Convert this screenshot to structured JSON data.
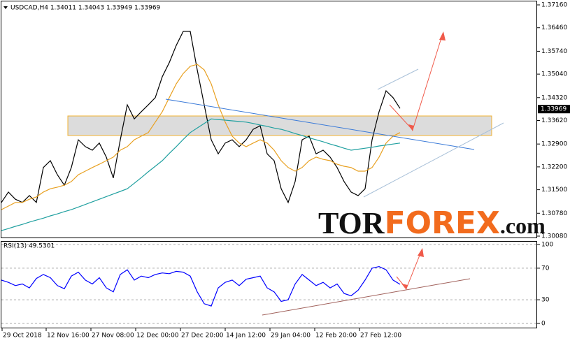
{
  "chart_data": [
    {
      "type": "line",
      "title": "USDCAD,H4  1.34011 1.34043 1.33949 1.33969",
      "x": [
        0,
        1,
        2,
        3,
        4,
        5,
        6,
        7,
        8,
        9,
        10,
        11,
        12,
        13,
        14,
        15,
        16,
        17,
        18,
        19,
        20,
        21,
        22,
        23,
        24,
        25,
        26,
        27,
        28,
        29,
        30,
        31,
        32,
        33,
        34,
        35,
        36,
        37,
        38,
        39,
        40,
        41,
        42,
        43,
        44,
        45,
        46,
        47,
        48,
        49,
        50,
        51,
        52,
        53,
        54,
        55,
        56,
        57
      ],
      "xlim": [
        0,
        76.6
      ],
      "ylim": [
        1.3008,
        1.3716
      ],
      "yticks": [
        {
          "value": 1.3716,
          "label": "1.37160"
        },
        {
          "value": 1.3646,
          "label": "1.36460"
        },
        {
          "value": 1.3574,
          "label": "1.35740"
        },
        {
          "value": 1.3504,
          "label": "1.35040"
        },
        {
          "value": 1.3432,
          "label": "1.34320"
        },
        {
          "value": 1.3362,
          "label": "1.33620"
        },
        {
          "value": 1.329,
          "label": "1.32900"
        },
        {
          "value": 1.322,
          "label": "1.32200"
        },
        {
          "value": 1.315,
          "label": "1.31500"
        },
        {
          "value": 1.3078,
          "label": "1.30780"
        },
        {
          "value": 1.3008,
          "label": "1.30080"
        }
      ],
      "last_price": 1.33969,
      "series": [
        {
          "color": "#000000",
          "values": [
            1.3111,
            1.3143,
            1.3121,
            1.3111,
            1.3132,
            1.3111,
            1.3218,
            1.3239,
            1.3196,
            1.3164,
            1.3218,
            1.3303,
            1.3282,
            1.3271,
            1.3293,
            1.325,
            1.3186,
            1.3303,
            1.341,
            1.3367,
            1.3389,
            1.341,
            1.3432,
            1.3496,
            1.3539,
            1.3592,
            1.3635,
            1.3635,
            1.3517,
            1.341,
            1.3303,
            1.326,
            1.3293,
            1.3303,
            1.3282,
            1.3303,
            1.3335,
            1.3346,
            1.326,
            1.3239,
            1.3153,
            1.3111,
            1.3175,
            1.3303,
            1.3314,
            1.326,
            1.3271,
            1.325,
            1.3218,
            1.3175,
            1.3143,
            1.3132,
            1.3153,
            1.3303,
            1.3389,
            1.3453,
            1.3432,
            1.3399
          ]
        },
        {
          "color": "#e8a020",
          "values": [
            1.3089,
            1.31,
            1.3111,
            1.3111,
            1.3121,
            1.3128,
            1.3143,
            1.3153,
            1.3158,
            1.3164,
            1.3175,
            1.3196,
            1.3207,
            1.3218,
            1.3228,
            1.3239,
            1.325,
            1.3271,
            1.3282,
            1.3303,
            1.3314,
            1.3325,
            1.3357,
            1.3389,
            1.3432,
            1.3474,
            1.3506,
            1.3528,
            1.3534,
            1.3517,
            1.3474,
            1.341,
            1.3357,
            1.3314,
            1.3293,
            1.3282,
            1.3293,
            1.3303,
            1.3293,
            1.3271,
            1.3239,
            1.3218,
            1.3207,
            1.3218,
            1.3239,
            1.325,
            1.3243,
            1.3239,
            1.3228,
            1.3222,
            1.3218,
            1.3207,
            1.3207,
            1.3218,
            1.325,
            1.3293,
            1.3314,
            1.3325
          ]
        },
        {
          "color": "#20a0a0",
          "values": [
            1.3025,
            1.3031,
            1.3038,
            1.3044,
            1.3051,
            1.3057,
            1.3063,
            1.307,
            1.3076,
            1.3083,
            1.3089,
            1.3097,
            1.3105,
            1.3113,
            1.3121,
            1.3129,
            1.3137,
            1.3145,
            1.3153,
            1.317,
            1.3187,
            1.3205,
            1.3222,
            1.3239,
            1.3261,
            1.3282,
            1.3304,
            1.3325,
            1.3339,
            1.3353,
            1.3367,
            1.3365,
            1.3363,
            1.3361,
            1.3359,
            1.3357,
            1.3353,
            1.3348,
            1.3344,
            1.3339,
            1.3335,
            1.3329,
            1.3322,
            1.3316,
            1.3309,
            1.3303,
            1.3297,
            1.329,
            1.3284,
            1.3277,
            1.3271,
            1.3274,
            1.3277,
            1.328,
            1.3284,
            1.3287,
            1.329,
            1.3293
          ]
        }
      ]
    },
    {
      "type": "line",
      "title": "RSI(13) 49.5301",
      "xlim": [
        0,
        76.6
      ],
      "ylim": [
        0,
        100
      ],
      "yticks": [
        100,
        70,
        30,
        0
      ],
      "xticks": [
        {
          "value": 0.1,
          "label": "29 Oct 2018"
        },
        {
          "value": 6.4,
          "label": "12 Nov 16:00"
        },
        {
          "value": 12.8,
          "label": "27 Nov 08:00"
        },
        {
          "value": 19.2,
          "label": "12 Dec 00:00"
        },
        {
          "value": 25.6,
          "label": "27 Dec 20:00"
        },
        {
          "value": 32,
          "label": "14 Jan 12:00"
        },
        {
          "value": 38.4,
          "label": "29 Jan 04:00"
        },
        {
          "value": 44.8,
          "label": "12 Feb 20:00"
        },
        {
          "value": 51.2,
          "label": "27 Feb 12:00"
        }
      ],
      "series": [
        {
          "color": "#0000ff",
          "values": [
            55,
            52,
            48,
            50,
            45,
            57,
            62,
            58,
            48,
            44,
            60,
            65,
            55,
            50,
            58,
            45,
            40,
            62,
            68,
            55,
            60,
            58,
            62,
            64,
            63,
            66,
            65,
            60,
            40,
            25,
            22,
            45,
            52,
            55,
            48,
            56,
            58,
            60,
            45,
            40,
            28,
            30,
            50,
            62,
            55,
            48,
            52,
            45,
            50,
            38,
            35,
            42,
            55,
            70,
            72,
            68,
            55,
            49.5301
          ]
        }
      ]
    }
  ],
  "watermark": [
    "TOR",
    "FOREX",
    ".com"
  ]
}
